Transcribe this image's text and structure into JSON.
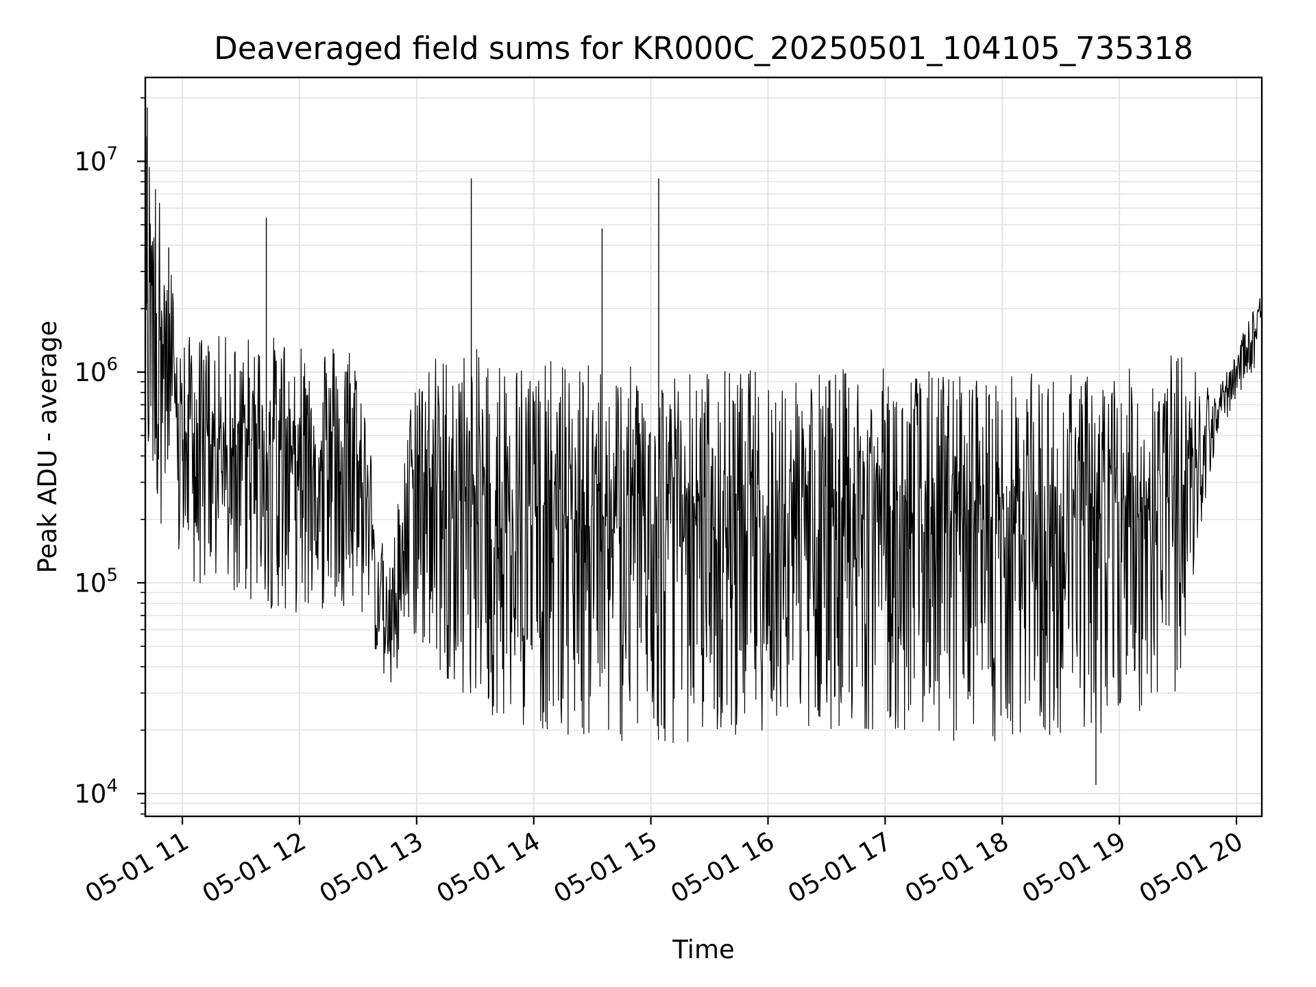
{
  "chart_data": {
    "type": "line",
    "title": "Deaveraged field sums for KR000C_20250501_104105_735318",
    "xlabel": "Time",
    "ylabel": "Peak ADU - average",
    "y_scale": "log",
    "grid": true,
    "x_range": [
      "2025-05-01 10:41",
      "2025-05-01 20:13"
    ],
    "ylim": [
      7800,
      25000000
    ],
    "x_ticks": [
      "05-01 11",
      "05-01 12",
      "05-01 13",
      "05-01 14",
      "05-01 15",
      "05-01 16",
      "05-01 17",
      "05-01 18",
      "05-01 19",
      "05-01 20"
    ],
    "y_ticks": [
      {
        "base": "10",
        "exp": "4"
      },
      {
        "base": "10",
        "exp": "5"
      },
      {
        "base": "10",
        "exp": "6"
      },
      {
        "base": "10",
        "exp": "7"
      }
    ],
    "line_color": "#000000",
    "series": [
      {
        "values_summary": "dense oscillating time series; approximate envelope below",
        "envelope": [
          {
            "x": "05-01 10:41",
            "low": 300000,
            "high": 18000000
          },
          {
            "x": "05-01 11:00",
            "low": 100000,
            "high": 1500000
          },
          {
            "x": "05-01 11:30",
            "low": 80000,
            "high": 1500000
          },
          {
            "x": "05-01 12:00",
            "low": 70000,
            "high": 1500000
          },
          {
            "x": "05-01 12:30",
            "low": 80000,
            "high": 1400000
          },
          {
            "x": "05-01 12:45",
            "low": 30000,
            "high": 100000
          },
          {
            "x": "05-01 13:00",
            "low": 50000,
            "high": 1200000
          },
          {
            "x": "05-01 13:30",
            "low": 25000,
            "high": 1300000
          },
          {
            "x": "05-01 14:00",
            "low": 20000,
            "high": 1150000
          },
          {
            "x": "05-01 15:00",
            "low": 16000,
            "high": 1050000
          },
          {
            "x": "05-01 16:00",
            "low": 20000,
            "high": 1050000
          },
          {
            "x": "05-01 17:00",
            "low": 20000,
            "high": 1050000
          },
          {
            "x": "05-01 18:00",
            "low": 16000,
            "high": 1000000
          },
          {
            "x": "05-01 19:00",
            "low": 20000,
            "high": 1000000
          },
          {
            "x": "05-01 19:30",
            "low": 30000,
            "high": 1300000
          },
          {
            "x": "05-01 19:50",
            "low": 500000,
            "high": 800000
          },
          {
            "x": "05-01 20:13",
            "low": 1200000,
            "high": 2500000
          }
        ],
        "spikes": [
          {
            "x": "05-01 10:42",
            "value": 18000000
          },
          {
            "x": "05-01 10:53",
            "value": 3900000
          },
          {
            "x": "05-01 11:43",
            "value": 5400000
          },
          {
            "x": "05-01 13:28",
            "value": 8300000
          },
          {
            "x": "05-01 14:35",
            "value": 4800000
          },
          {
            "x": "05-01 15:04",
            "value": 8300000
          },
          {
            "x": "05-01 18:48",
            "value": 11000
          }
        ]
      }
    ]
  }
}
